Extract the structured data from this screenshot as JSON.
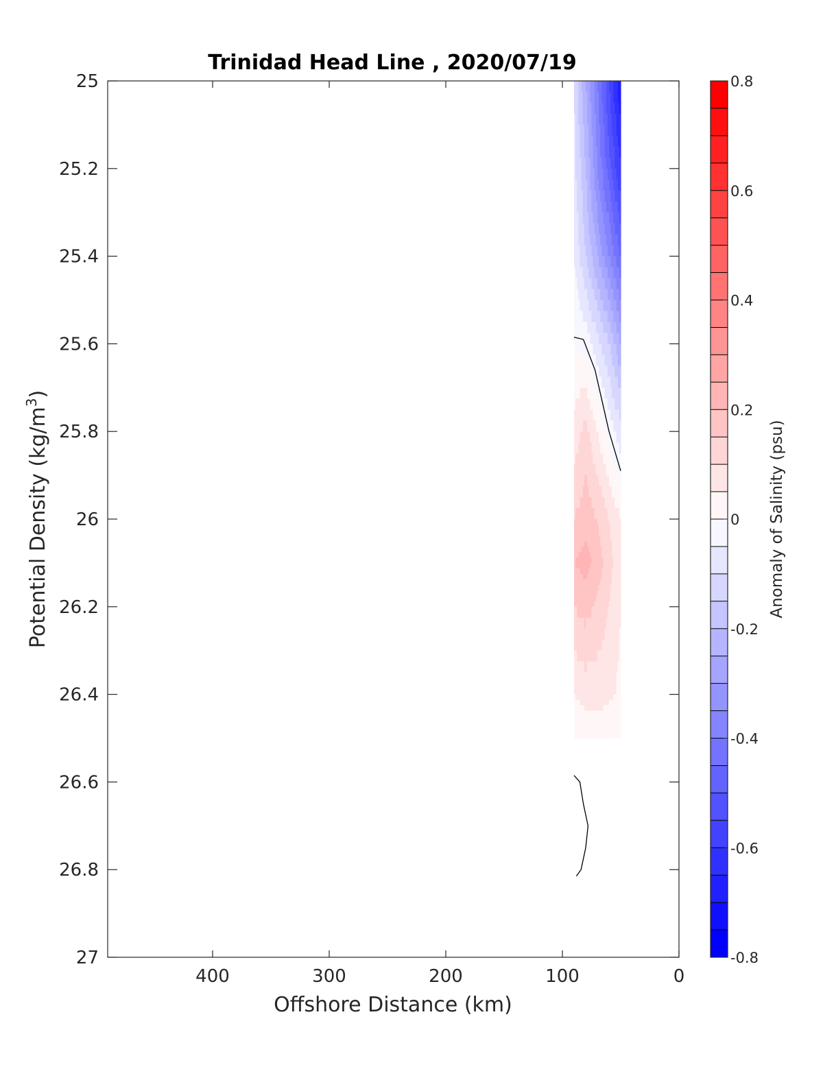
{
  "chart_data": {
    "type": "contour",
    "title": "Trinidad Head Line , 2020/07/19",
    "xlabel": "Offshore Distance (km)",
    "ylabel": "Potential Density (kg/m",
    "ylabel_superscript": "3",
    "ylabel_close": ")",
    "xlim": [
      490,
      0
    ],
    "ylim": [
      25,
      27
    ],
    "x_reversed": true,
    "y_reversed": true,
    "x_ticks": [
      400,
      300,
      200,
      100,
      0
    ],
    "x_tick_labels": [
      "400",
      "300",
      "200",
      "100",
      "0"
    ],
    "y_ticks": [
      25,
      25.2,
      25.4,
      25.6,
      25.8,
      26,
      26.2,
      26.4,
      26.6,
      26.8,
      27
    ],
    "y_tick_labels": [
      "25",
      "25.2",
      "25.4",
      "25.6",
      "25.8",
      "26",
      "26.2",
      "26.4",
      "26.6",
      "26.8",
      "27"
    ],
    "colorbar": {
      "label": "Anomaly of Salinity (psu)",
      "range": [
        -0.8,
        0.8
      ],
      "step": 0.05,
      "ticks": [
        0.8,
        0.6,
        0.4,
        0.2,
        0,
        -0.2,
        -0.4,
        -0.6,
        -0.8
      ],
      "tick_labels": [
        "0.8",
        "0.6",
        "0.4",
        "0.2",
        "0",
        "-0.2",
        "-0.4",
        "-0.6",
        "-0.8"
      ],
      "neg_color": "#0000ff",
      "pos_color": "#ff0000",
      "mid_color": "#ffffff"
    },
    "stations_x_km": [
      90,
      80,
      70,
      60,
      50
    ],
    "grid_density": [
      25.0,
      25.2,
      25.4,
      25.6,
      25.8,
      26.0,
      26.1,
      26.2,
      26.4,
      26.5
    ],
    "anomaly_grid": [
      [
        -0.1,
        -0.25,
        -0.4,
        -0.55,
        -0.7
      ],
      [
        -0.08,
        -0.2,
        -0.35,
        -0.48,
        -0.6
      ],
      [
        -0.05,
        -0.15,
        -0.25,
        -0.35,
        -0.45
      ],
      [
        0.0,
        -0.02,
        -0.08,
        -0.15,
        -0.25
      ],
      [
        0.07,
        0.12,
        0.05,
        -0.02,
        -0.08
      ],
      [
        0.15,
        0.18,
        0.15,
        0.1,
        0.05
      ],
      [
        0.2,
        0.22,
        0.18,
        0.12,
        0.06
      ],
      [
        0.15,
        0.17,
        0.14,
        0.1,
        0.05
      ],
      [
        0.05,
        0.07,
        0.07,
        0.06,
        0.04
      ],
      [
        0.0,
        0.01,
        0.02,
        0.01,
        0.0
      ]
    ],
    "zero_contours": [
      [
        [
          90,
          25.585
        ],
        [
          82,
          25.59
        ],
        [
          72,
          25.66
        ],
        [
          60,
          25.8
        ],
        [
          50,
          25.89
        ]
      ],
      [
        [
          90,
          26.585
        ],
        [
          85,
          26.6
        ],
        [
          82,
          26.65
        ],
        [
          78,
          26.7
        ],
        [
          80,
          26.75
        ],
        [
          84,
          26.8
        ],
        [
          88,
          26.815
        ]
      ]
    ]
  }
}
